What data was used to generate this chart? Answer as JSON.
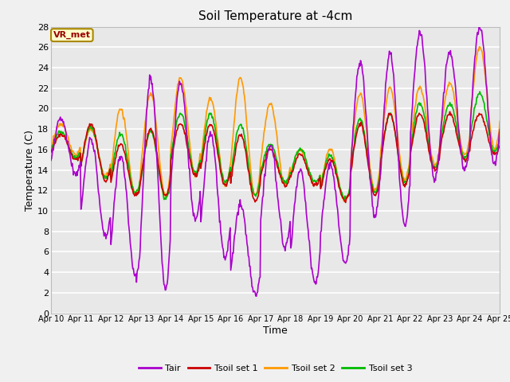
{
  "title": "Soil Temperature at -4cm",
  "xlabel": "Time",
  "ylabel": "Temperature (C)",
  "ylim": [
    0,
    28
  ],
  "yticks": [
    0,
    2,
    4,
    6,
    8,
    10,
    12,
    14,
    16,
    18,
    20,
    22,
    24,
    26,
    28
  ],
  "x_tick_labels": [
    "Apr 10",
    "Apr 11",
    "Apr 12",
    "Apr 13",
    "Apr 14",
    "Apr 15",
    "Apr 16",
    "Apr 17",
    "Apr 18",
    "Apr 19",
    "Apr 20",
    "Apr 21",
    "Apr 22",
    "Apr 23",
    "Apr 24",
    "Apr 25"
  ],
  "annotation_text": "VR_met",
  "annotation_bg": "#ffffcc",
  "annotation_border": "#aa8800",
  "annotation_text_color": "#990000",
  "color_tair": "#aa00cc",
  "color_tsoil1": "#cc0000",
  "color_tsoil2": "#ff9900",
  "color_tsoil3": "#00bb00",
  "fig_bg": "#f0f0f0",
  "plot_bg": "#e8e8e8",
  "grid_color": "#ffffff",
  "legend_labels": [
    "Tair",
    "Tsoil set 1",
    "Tsoil set 2",
    "Tsoil set 3"
  ],
  "n_points": 720,
  "tair_night_lows": [
    13.5,
    7.5,
    3.5,
    2.5,
    9.0,
    5.5,
    1.8,
    6.5,
    3.0,
    5.0,
    9.5,
    8.5,
    13.0,
    14.0,
    14.5,
    14.5
  ],
  "tair_day_highs": [
    19.0,
    17.0,
    15.5,
    23.0,
    22.5,
    17.5,
    10.5,
    16.5,
    14.0,
    14.5,
    24.5,
    25.5,
    27.5,
    25.5,
    28.0,
    19.0
  ],
  "soil1_night_lows": [
    15.0,
    13.0,
    11.5,
    11.5,
    13.5,
    12.5,
    11.0,
    12.5,
    12.5,
    11.0,
    11.5,
    12.5,
    14.0,
    15.0,
    15.5,
    16.5
  ],
  "soil1_day_highs": [
    17.5,
    18.5,
    16.5,
    18.0,
    18.5,
    18.5,
    17.5,
    16.0,
    15.5,
    15.0,
    18.5,
    19.5,
    19.5,
    19.5,
    19.5,
    17.5
  ],
  "soil2_night_lows": [
    15.5,
    13.5,
    11.5,
    11.5,
    13.5,
    12.5,
    11.5,
    12.5,
    12.5,
    11.0,
    12.0,
    13.0,
    14.5,
    15.5,
    16.0,
    17.0
  ],
  "soil2_day_highs": [
    18.5,
    18.0,
    20.0,
    21.5,
    23.0,
    21.0,
    23.0,
    20.5,
    16.0,
    16.0,
    21.5,
    22.0,
    22.0,
    22.5,
    26.0,
    20.0
  ],
  "soil3_night_lows": [
    15.2,
    13.2,
    11.8,
    11.2,
    13.8,
    12.8,
    11.5,
    12.8,
    12.8,
    11.2,
    11.8,
    12.8,
    14.2,
    15.2,
    15.8,
    16.8
  ],
  "soil3_day_highs": [
    17.8,
    18.2,
    17.5,
    17.8,
    19.5,
    19.5,
    18.5,
    16.5,
    16.0,
    15.5,
    19.0,
    19.5,
    20.5,
    20.5,
    21.5,
    19.5
  ]
}
